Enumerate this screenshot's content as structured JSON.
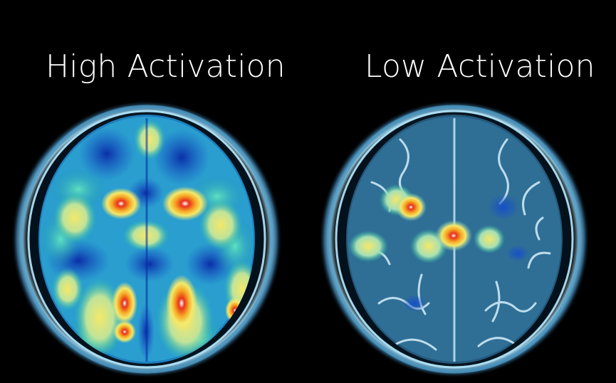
{
  "panels": [
    {
      "label": "High Activation",
      "activation_level": "high"
    },
    {
      "label": "Low Activation",
      "activation_level": "low"
    }
  ],
  "colors": {
    "background": "#000000",
    "label": "#ffffff",
    "low_signal": "#1238b8",
    "mid_signal": "#2ec4a0",
    "high_signal": "#f4e86a",
    "peak_signal": "#e8331c",
    "tissue": "#2f6f96"
  }
}
